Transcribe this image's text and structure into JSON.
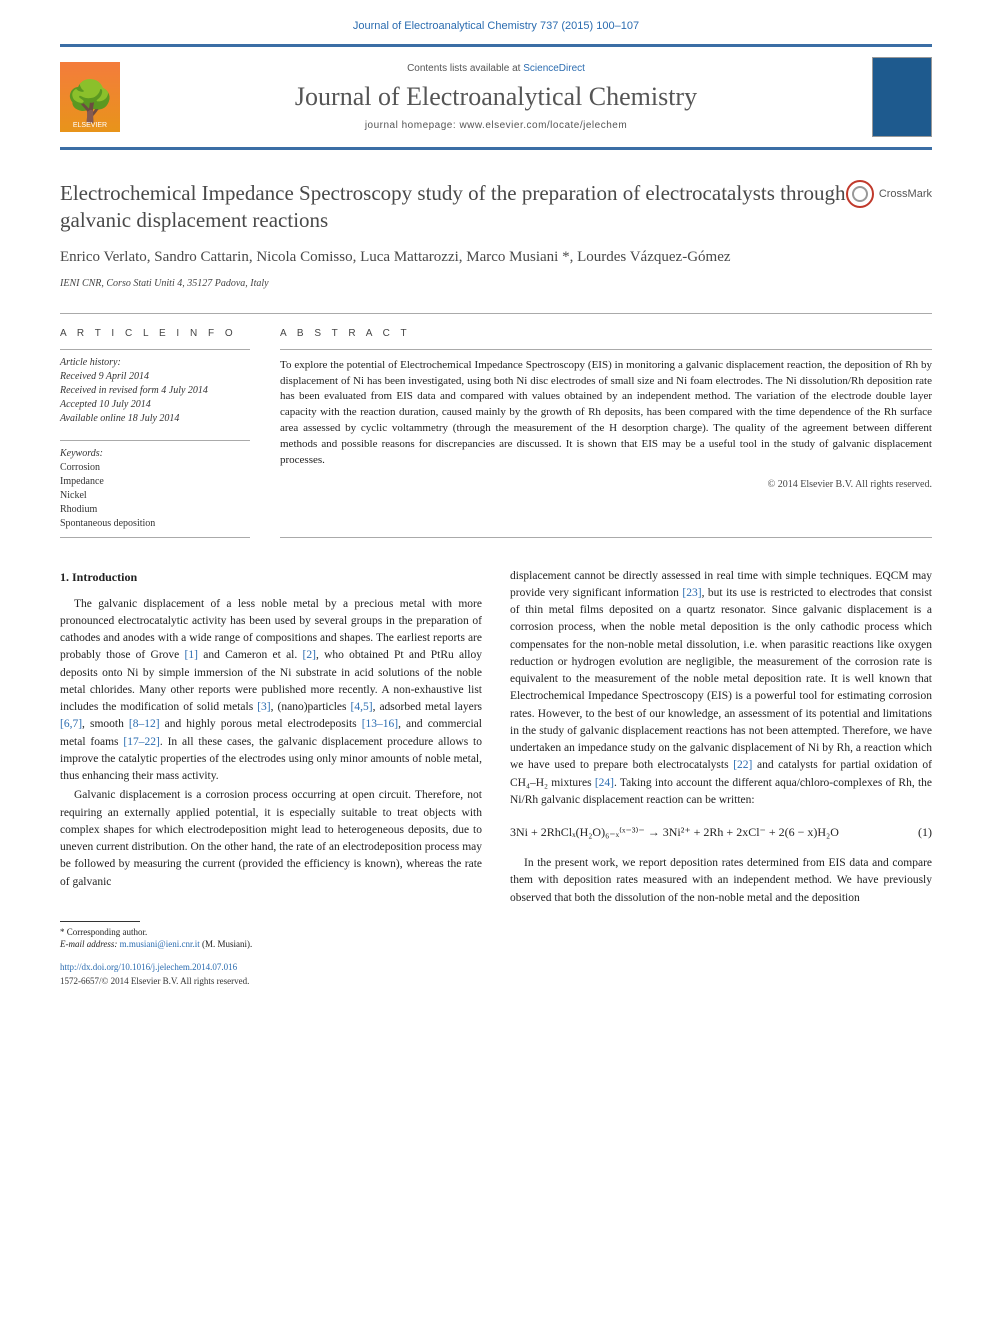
{
  "header": {
    "citation": "Journal of Electroanalytical Chemistry 737 (2015) 100–107",
    "contents_prefix": "Contents lists available at ",
    "contents_link": "ScienceDirect",
    "journal_name": "Journal of Electroanalytical Chemistry",
    "homepage_prefix": "journal homepage: ",
    "homepage_url": "www.elsevier.com/locate/jelechem",
    "publisher": "ELSEVIER"
  },
  "article": {
    "title": "Electrochemical Impedance Spectroscopy study of the preparation of electrocatalysts through galvanic displacement reactions",
    "crossmark_label": "CrossMark",
    "authors": "Enrico Verlato, Sandro Cattarin, Nicola Comisso, Luca Mattarozzi, Marco Musiani *, Lourdes Vázquez-Gómez",
    "affiliation": "IENI CNR, Corso Stati Uniti 4, 35127 Padova, Italy"
  },
  "info": {
    "label": "A R T I C L E   I N F O",
    "history_label": "Article history:",
    "received": "Received 9 April 2014",
    "revised": "Received in revised form 4 July 2014",
    "accepted": "Accepted 10 July 2014",
    "online": "Available online 18 July 2014",
    "keywords_label": "Keywords:",
    "keywords": [
      "Corrosion",
      "Impedance",
      "Nickel",
      "Rhodium",
      "Spontaneous deposition"
    ]
  },
  "abstract": {
    "label": "A B S T R A C T",
    "text": "To explore the potential of Electrochemical Impedance Spectroscopy (EIS) in monitoring a galvanic displacement reaction, the deposition of Rh by displacement of Ni has been investigated, using both Ni disc electrodes of small size and Ni foam electrodes. The Ni dissolution/Rh deposition rate has been evaluated from EIS data and compared with values obtained by an independent method. The variation of the electrode double layer capacity with the reaction duration, caused mainly by the growth of Rh deposits, has been compared with the time dependence of the Rh surface area assessed by cyclic voltammetry (through the measurement of the H desorption charge). The quality of the agreement between different methods and possible reasons for discrepancies are discussed. It is shown that EIS may be a useful tool in the study of galvanic displacement processes.",
    "copyright": "© 2014 Elsevier B.V. All rights reserved."
  },
  "body": {
    "section1_title": "1. Introduction",
    "para1_a": "The galvanic displacement of a less noble metal by a precious metal with more pronounced electrocatalytic activity has been used by several groups in the preparation of cathodes and anodes with a wide range of compositions and shapes. The earliest reports are probably those of Grove ",
    "ref1": "[1]",
    "para1_b": " and Cameron et al. ",
    "ref2": "[2]",
    "para1_c": ", who obtained Pt and PtRu alloy deposits onto Ni by simple immersion of the Ni substrate in acid solutions of the noble metal chlorides. Many other reports were published more recently. A non-exhaustive list includes the modification of solid metals ",
    "ref3": "[3]",
    "para1_d": ", (nano)particles ",
    "ref45": "[4,5]",
    "para1_e": ", adsorbed metal layers ",
    "ref67": "[6,7]",
    "para1_f": ", smooth ",
    "ref812": "[8–12]",
    "para1_g": " and highly porous metal electrodeposits ",
    "ref1316": "[13–16]",
    "para1_h": ", and commercial metal foams ",
    "ref1722": "[17–22]",
    "para1_i": ". In all these cases, the galvanic displacement procedure allows to improve the catalytic properties of the electrodes using only minor amounts of noble metal, thus enhancing their mass activity.",
    "para2": "Galvanic displacement is a corrosion process occurring at open circuit. Therefore, not requiring an externally applied potential, it is especially suitable to treat objects with complex shapes for which electrodeposition might lead to heterogeneous deposits, due to uneven current distribution. On the other hand, the rate of an electrodeposition process may be followed by measuring the current (provided the efficiency is known), whereas the rate of galvanic",
    "para3_a": "displacement cannot be directly assessed in real time with simple techniques. EQCM may provide very significant information ",
    "ref23": "[23]",
    "para3_b": ", but its use is restricted to electrodes that consist of thin metal films deposited on a quartz resonator. Since galvanic displacement is a corrosion process, when the noble metal deposition is the only cathodic process which compensates for the non-noble metal dissolution, i.e. when parasitic reactions like oxygen reduction or hydrogen evolution are negligible, the measurement of the corrosion rate is equivalent to the measurement of the noble metal deposition rate. It is well known that Electrochemical Impedance Spectroscopy (EIS) is a powerful tool for estimating corrosion rates. However, to the best of our knowledge, an assessment of its potential and limitations in the study of galvanic displacement reactions has not been attempted. Therefore, we have undertaken an impedance study on the galvanic displacement of Ni by Rh, a reaction which we have used to prepare both electrocatalysts ",
    "ref22": "[22]",
    "para3_c": " and catalysts for partial oxidation of CH₄–H₂ mixtures ",
    "ref24": "[24]",
    "para3_d": ". Taking into account the different aqua/chloro-complexes of Rh, the Ni/Rh galvanic displacement reaction can be written:",
    "equation": "3Ni + 2RhClₓ(H₂O)₆₋ₓ⁽ˣ⁻³⁾⁻ → 3Ni²⁺ + 2Rh + 2xCl⁻ + 2(6 − x)H₂O",
    "eq_num": "(1)",
    "para4": "In the present work, we report deposition rates determined from EIS data and compare them with deposition rates measured with an independent method. We have previously observed that both the dissolution of the non-noble metal and the deposition"
  },
  "footnote": {
    "corresponding": "* Corresponding author.",
    "email_label": "E-mail address: ",
    "email": "m.musiani@ieni.cnr.it",
    "email_person": " (M. Musiani)."
  },
  "footer": {
    "doi": "http://dx.doi.org/10.1016/j.jelechem.2014.07.016",
    "issn_copyright": "1572-6657/© 2014 Elsevier B.V. All rights reserved."
  },
  "colors": {
    "link": "#2b6cb0",
    "border": "#3b6ea5",
    "elsevier": "#f47c3c"
  }
}
